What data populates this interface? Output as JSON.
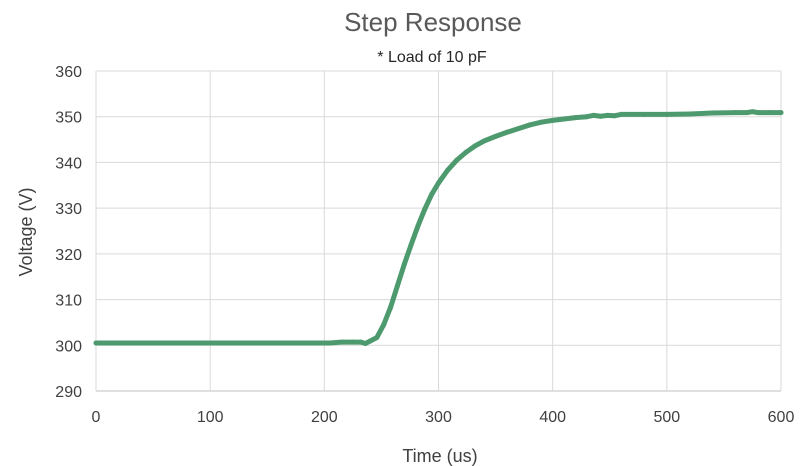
{
  "chart_data": {
    "type": "line",
    "title": "Step Response",
    "subtitle": "* Load of 10 pF",
    "xlabel": "Time (us)",
    "ylabel": "Voltage (V)",
    "xlim": [
      0,
      600
    ],
    "ylim": [
      290,
      360
    ],
    "xticks": [
      0,
      100,
      200,
      300,
      400,
      500,
      600
    ],
    "yticks": [
      290,
      300,
      310,
      320,
      330,
      340,
      350,
      360
    ],
    "xtick_labels": [
      "0",
      "100",
      "200",
      "300",
      "400",
      "500",
      "600"
    ],
    "ytick_labels": [
      "290",
      "300",
      "310",
      "320",
      "330",
      "340",
      "350",
      "360"
    ],
    "grid": true,
    "legend": "none",
    "colors": {
      "series": "#4e9a6f",
      "grid": "#d9d9d9"
    },
    "series": [
      {
        "x": [
          0,
          50,
          100,
          150,
          200,
          205,
          215,
          225,
          232,
          236,
          240,
          246,
          252,
          258,
          264,
          270,
          276,
          282,
          288,
          294,
          300,
          308,
          316,
          324,
          332,
          340,
          350,
          360,
          370,
          380,
          390,
          400,
          410,
          420,
          430,
          436,
          442,
          448,
          454,
          460,
          480,
          500,
          520,
          540,
          560,
          570,
          575,
          580,
          590,
          600
        ],
        "y": [
          300.5,
          300.5,
          300.5,
          300.5,
          300.5,
          300.5,
          300.7,
          300.7,
          300.7,
          300.4,
          300.9,
          301.7,
          304.5,
          308.3,
          313.0,
          317.7,
          322.0,
          326.1,
          329.8,
          333.0,
          335.5,
          338.3,
          340.5,
          342.2,
          343.6,
          344.7,
          345.7,
          346.6,
          347.4,
          348.2,
          348.8,
          349.2,
          349.5,
          349.8,
          350.0,
          350.3,
          350.1,
          350.3,
          350.2,
          350.5,
          350.5,
          350.5,
          350.6,
          350.8,
          350.9,
          350.9,
          351.1,
          350.9,
          350.9,
          350.9
        ]
      }
    ]
  }
}
